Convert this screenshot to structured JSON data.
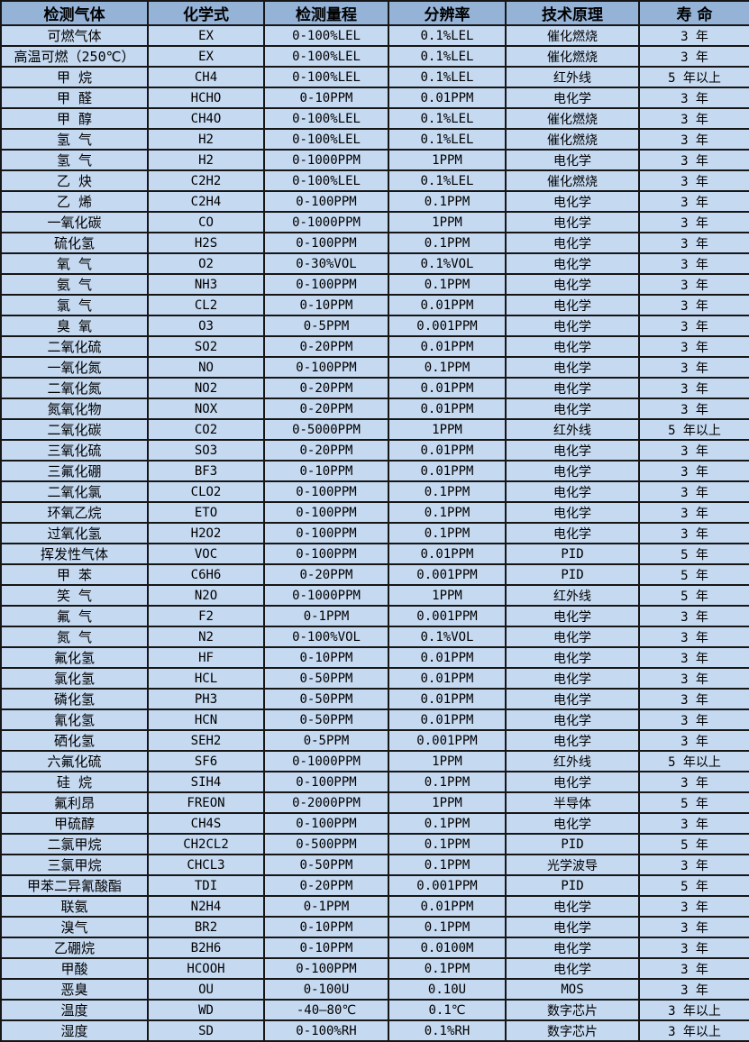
{
  "table": {
    "colors": {
      "header_bg": "#95B3D7",
      "row_bg": "#C5D9F1",
      "border": "#161616",
      "text": "#000000"
    },
    "columns": [
      "检测气体",
      "化学式",
      "检测量程",
      "分辨率",
      "技术原理",
      "寿 命"
    ],
    "rows": [
      [
        "可燃气体",
        "EX",
        "0-100%LEL",
        "0.1%LEL",
        "催化燃烧",
        "3 年"
      ],
      [
        "高温可燃（250℃）",
        "EX",
        "0-100%LEL",
        "0.1%LEL",
        "催化燃烧",
        "3 年"
      ],
      [
        "甲 烷",
        "CH4",
        "0-100%LEL",
        "0.1%LEL",
        "红外线",
        "5 年以上"
      ],
      [
        "甲 醛",
        "HCHO",
        "0-10PPM",
        "0.01PPM",
        "电化学",
        "3 年"
      ],
      [
        "甲 醇",
        "CH4O",
        "0-100%LEL",
        "0.1%LEL",
        "催化燃烧",
        "3 年"
      ],
      [
        "氢 气",
        "H2",
        "0-100%LEL",
        "0.1%LEL",
        "催化燃烧",
        "3 年"
      ],
      [
        "氢 气",
        "H2",
        "0-1000PPM",
        "1PPM",
        "电化学",
        "3 年"
      ],
      [
        "乙 炔",
        "C2H2",
        "0-100%LEL",
        "0.1%LEL",
        "催化燃烧",
        "3 年"
      ],
      [
        "乙 烯",
        "C2H4",
        "0-100PPM",
        "0.1PPM",
        "电化学",
        "3 年"
      ],
      [
        "一氧化碳",
        "CO",
        "0-1000PPM",
        "1PPM",
        "电化学",
        "3 年"
      ],
      [
        "硫化氢",
        "H2S",
        "0-100PPM",
        "0.1PPM",
        "电化学",
        "3 年"
      ],
      [
        "氧 气",
        "O2",
        "0-30%VOL",
        "0.1%VOL",
        "电化学",
        "3 年"
      ],
      [
        "氨 气",
        "NH3",
        "0-100PPM",
        "0.1PPM",
        "电化学",
        "3 年"
      ],
      [
        "氯 气",
        "CL2",
        "0-10PPM",
        "0.01PPM",
        "电化学",
        "3 年"
      ],
      [
        "臭 氧",
        "O3",
        "0-5PPM",
        "0.001PPM",
        "电化学",
        "3 年"
      ],
      [
        "二氧化硫",
        "SO2",
        "0-20PPM",
        "0.01PPM",
        "电化学",
        "3 年"
      ],
      [
        "一氧化氮",
        "NO",
        "0-100PPM",
        "0.1PPM",
        "电化学",
        "3 年"
      ],
      [
        "二氧化氮",
        "NO2",
        "0-20PPM",
        "0.01PPM",
        "电化学",
        "3 年"
      ],
      [
        "氮氧化物",
        "NOX",
        "0-20PPM",
        "0.01PPM",
        "电化学",
        "3 年"
      ],
      [
        "二氧化碳",
        "CO2",
        "0-5000PPM",
        "1PPM",
        "红外线",
        "5 年以上"
      ],
      [
        "三氧化硫",
        "SO3",
        "0-20PPM",
        "0.01PPM",
        "电化学",
        "3 年"
      ],
      [
        "三氟化硼",
        "BF3",
        "0-10PPM",
        "0.01PPM",
        "电化学",
        "3 年"
      ],
      [
        "二氧化氯",
        "CLO2",
        "0-100PPM",
        "0.1PPM",
        "电化学",
        "3 年"
      ],
      [
        "环氧乙烷",
        "ETO",
        "0-100PPM",
        "0.1PPM",
        "电化学",
        "3 年"
      ],
      [
        "过氧化氢",
        "H2O2",
        "0-100PPM",
        "0.1PPM",
        "电化学",
        "3 年"
      ],
      [
        "挥发性气体",
        "VOC",
        "0-100PPM",
        "0.01PPM",
        "PID",
        "5 年"
      ],
      [
        "甲 苯",
        "C6H6",
        "0-20PPM",
        "0.001PPM",
        "PID",
        "5 年"
      ],
      [
        "笑 气",
        "N2O",
        "0-1000PPM",
        "1PPM",
        "红外线",
        "5 年"
      ],
      [
        "氟 气",
        "F2",
        "0-1PPM",
        "0.001PPM",
        "电化学",
        "3 年"
      ],
      [
        "氮 气",
        "N2",
        "0-100%VOL",
        "0.1%VOL",
        "电化学",
        "3 年"
      ],
      [
        "氟化氢",
        "HF",
        "0-10PPM",
        "0.01PPM",
        "电化学",
        "3 年"
      ],
      [
        "氯化氢",
        "HCL",
        "0-50PPM",
        "0.01PPM",
        "电化学",
        "3 年"
      ],
      [
        "磷化氢",
        "PH3",
        "0-50PPM",
        "0.01PPM",
        "电化学",
        "3 年"
      ],
      [
        "氰化氢",
        "HCN",
        "0-50PPM",
        "0.01PPM",
        "电化学",
        "3 年"
      ],
      [
        "硒化氢",
        "SEH2",
        "0-5PPM",
        "0.001PPM",
        "电化学",
        "3 年"
      ],
      [
        "六氟化硫",
        "SF6",
        "0-1000PPM",
        "1PPM",
        "红外线",
        "5 年以上"
      ],
      [
        "硅 烷",
        "SIH4",
        "0-100PPM",
        "0.1PPM",
        "电化学",
        "3 年"
      ],
      [
        "氟利昂",
        "FREON",
        "0-2000PPM",
        "1PPM",
        "半导体",
        "5 年"
      ],
      [
        "甲硫醇",
        "CH4S",
        "0-100PPM",
        "0.1PPM",
        "电化学",
        "3 年"
      ],
      [
        "二氯甲烷",
        "CH2CL2",
        "0-500PPM",
        "0.1PPM",
        "PID",
        "5 年"
      ],
      [
        "三氯甲烷",
        "CHCL3",
        "0-50PPM",
        "0.1PPM",
        "光学波导",
        "3 年"
      ],
      [
        "甲苯二异氰酸酯",
        "TDI",
        "0-20PPM",
        "0.001PPM",
        "PID",
        "5 年"
      ],
      [
        "联氨",
        "N2H4",
        "0-1PPM",
        "0.01PPM",
        "电化学",
        "3 年"
      ],
      [
        "溴气",
        "BR2",
        "0-10PPM",
        "0.1PPM",
        "电化学",
        "3 年"
      ],
      [
        "乙硼烷",
        "B2H6",
        "0-10PPM",
        "0.0100M",
        "电化学",
        "3 年"
      ],
      [
        "甲酸",
        "HCOOH",
        "0-100PPM",
        "0.1PPM",
        "电化学",
        "3 年"
      ],
      [
        "恶臭",
        "OU",
        "0-100U",
        "0.10U",
        "MOS",
        "3 年"
      ],
      [
        "温度",
        "WD",
        "-40—80℃",
        "0.1℃",
        "数字芯片",
        "3 年以上"
      ],
      [
        "湿度",
        "SD",
        "0-100%RH",
        "0.1%RH",
        "数字芯片",
        "3 年以上"
      ]
    ]
  }
}
